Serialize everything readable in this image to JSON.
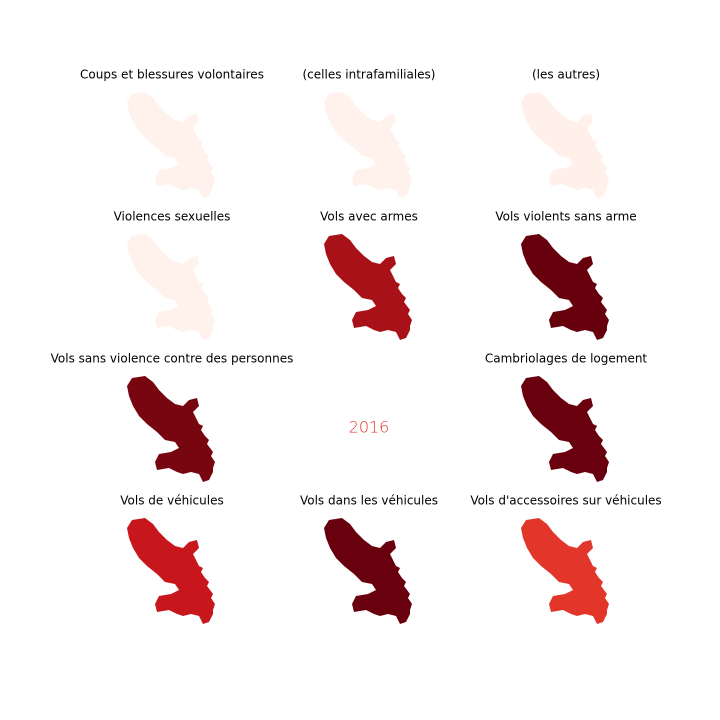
{
  "panels": [
    {
      "title": "Coups et blessures volontaires",
      "color": "#fff1eb"
    },
    {
      "title": "(celles intrafamiliales)",
      "color": "#fff1eb"
    },
    {
      "title": "(les autres)",
      "color": "#fff0e9"
    },
    {
      "title": "Violences sexuelles",
      "color": "#fff1eb"
    },
    {
      "title": "Vols avec armes",
      "color": "#a81118"
    },
    {
      "title": "Vols violents sans arme",
      "color": "#67000d"
    },
    {
      "title": "Vols sans violence contre des personnes",
      "color": "#780610"
    },
    {
      "title": "Cambriolages de logement",
      "color": "#69000d"
    },
    {
      "title": "Vols de véhicules",
      "color": "#c8171c"
    },
    {
      "title": "Vols dans les véhicules",
      "color": "#69000d"
    },
    {
      "title": "Vols d'accessoires sur véhicules",
      "color": "#e2362b"
    }
  ],
  "year": {
    "label": "2016",
    "color": "#e2362b"
  }
}
